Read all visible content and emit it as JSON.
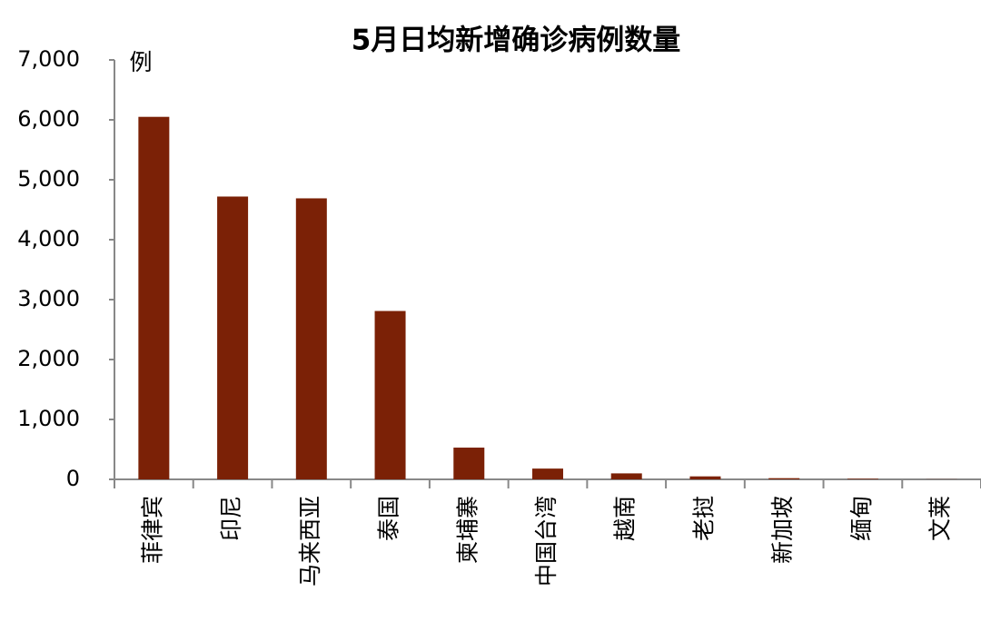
{
  "chart_data": {
    "type": "bar",
    "title": "5月日均新增确诊病例数量",
    "y_label": "例",
    "categories": [
      "菲律宾",
      "印尼",
      "马来西亚",
      "泰国",
      "柬埔寨",
      "中国台湾",
      "越南",
      "老挝",
      "新加坡",
      "缅甸",
      "文莱"
    ],
    "values": [
      6050,
      4720,
      4690,
      2810,
      530,
      180,
      100,
      50,
      20,
      10,
      2
    ],
    "color": "#7b2106",
    "ylim": [
      0,
      7000
    ],
    "yticks": [
      0,
      {
        "value": 1000,
        "label": "1,000"
      },
      {
        "value": 2000,
        "label": "2,000"
      },
      {
        "value": 3000,
        "label": "3,000"
      },
      {
        "value": 4000,
        "label": "4,000"
      },
      {
        "value": 5000,
        "label": "5,000"
      },
      {
        "value": 6000,
        "label": "6,000"
      },
      {
        "value": 7000,
        "label": "7,000"
      }
    ],
    "grid": false
  }
}
